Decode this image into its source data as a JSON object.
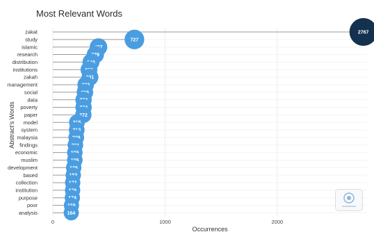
{
  "chart_data": {
    "type": "lollipop",
    "title": "Most Relevant Words",
    "xlabel": "Occurrences",
    "ylabel": "Abstract's Words",
    "xlim": [
      0,
      2800
    ],
    "xticks": [
      0,
      1000,
      2000
    ],
    "grid": true,
    "categories": [
      "zakat",
      "study",
      "islamic",
      "research",
      "distribution",
      "institutions",
      "zakah",
      "management",
      "social",
      "data",
      "poverty",
      "paper",
      "model",
      "system",
      "malaysia",
      "findings",
      "economic",
      "muslim",
      "development",
      "based",
      "collection",
      "institution",
      "purpose",
      "poor",
      "analysis"
    ],
    "values": [
      2767,
      727,
      407,
      379,
      340,
      322,
      331,
      293,
      286,
      274,
      274,
      272,
      215,
      213,
      209,
      201,
      196,
      196,
      186,
      182,
      177,
      176,
      174,
      166,
      164
    ],
    "marker_color": "#4a9de0",
    "max_marker_color": "#14314f",
    "stem_color": "#9a9a9a"
  }
}
